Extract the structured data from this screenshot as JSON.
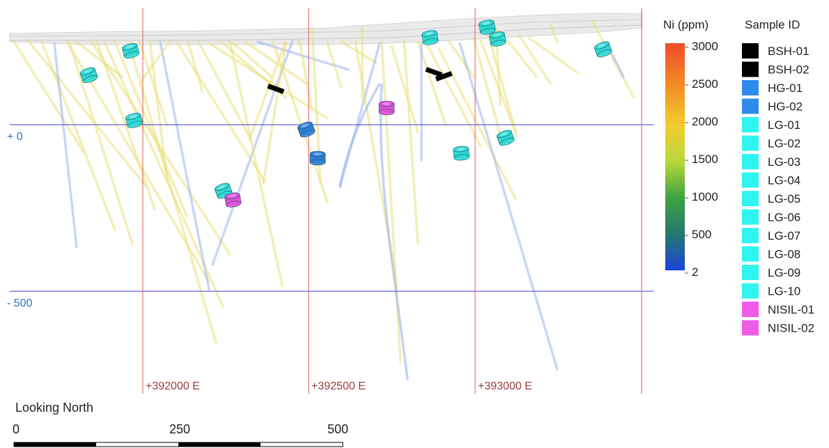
{
  "view_label": "Looking North",
  "elevation_labels": [
    "+ 0",
    "- 500"
  ],
  "easting_labels": [
    "+392000 E",
    "+392500 E",
    "+393000 E"
  ],
  "scale_bar": {
    "ticks": [
      "0",
      "250",
      "500"
    ]
  },
  "colorbar": {
    "title": "Ni (ppm)",
    "ticks": [
      "3000",
      "2500",
      "2000",
      "1500",
      "1000",
      "500",
      "2"
    ],
    "colors": [
      "#f04a2a",
      "#f39223",
      "#f2cf2e",
      "#b8d93a",
      "#3fa53d",
      "#277a6d",
      "#1b4fd8"
    ]
  },
  "legend": {
    "title": "Sample ID",
    "items": [
      {
        "label": "BSH-01",
        "color": "#000000"
      },
      {
        "label": "BSH-02",
        "color": "#000000"
      },
      {
        "label": "HG-01",
        "color": "#2e8bea"
      },
      {
        "label": "HG-02",
        "color": "#2e8bea"
      },
      {
        "label": "LG-01",
        "color": "#2ff5f0"
      },
      {
        "label": "LG-02",
        "color": "#2ff5f0"
      },
      {
        "label": "LG-03",
        "color": "#2ff5f0"
      },
      {
        "label": "LG-04",
        "color": "#2ff5f0"
      },
      {
        "label": "LG-05",
        "color": "#2ff5f0"
      },
      {
        "label": "LG-06",
        "color": "#2ff5f0"
      },
      {
        "label": "LG-07",
        "color": "#2ff5f0"
      },
      {
        "label": "LG-08",
        "color": "#2ff5f0"
      },
      {
        "label": "LG-09",
        "color": "#2ff5f0"
      },
      {
        "label": "LG-10",
        "color": "#2ff5f0"
      },
      {
        "label": "NISIL-01",
        "color": "#ee5ce8"
      },
      {
        "label": "NISIL-02",
        "color": "#ee5ce8"
      }
    ]
  },
  "colors": {
    "grid_easting": "#e25a5a",
    "grid_elevation": "#3b3bd6",
    "elevation_text": "#2a74b8",
    "easting_text": "#9a3b3b",
    "drill_trace": "#e9e07a",
    "drill_low": "#9bb4ee",
    "cyl_lg": "#2fd9d6",
    "cyl_hg": "#2f7fd8",
    "cyl_nisil": "#e050dc",
    "cyl_bsh": "#000000"
  }
}
